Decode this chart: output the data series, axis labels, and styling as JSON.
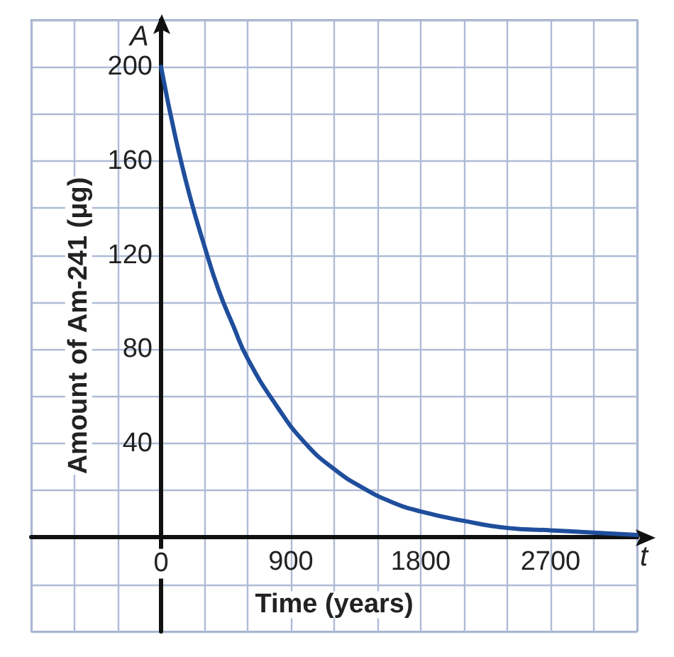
{
  "chart_data": {
    "type": "line",
    "xlabel": "Time (years)",
    "ylabel": "Amount of Am-241 (μg)",
    "annotations": [
      "A",
      "t"
    ],
    "x": [
      0,
      100,
      200,
      300,
      400,
      500,
      600,
      800,
      1000,
      1200,
      1400,
      1600,
      1800,
      2100,
      2400,
      2700,
      3000,
      3300
    ],
    "series": [
      {
        "color": "#1f4e9c",
        "values": [
          200,
          170,
          145,
          124,
          105,
          90,
          76,
          56,
          40,
          29,
          21,
          15,
          11,
          7,
          4,
          3,
          2,
          1
        ]
      }
    ],
    "xlim": [
      -900,
      3300
    ],
    "ylim": [
      -40,
      220
    ],
    "xticks": [
      {
        "value": -900,
        "label": null
      },
      {
        "value": -600,
        "label": null
      },
      {
        "value": -300,
        "label": null
      },
      0,
      {
        "value": 300,
        "label": null
      },
      {
        "value": 600,
        "label": null
      },
      900,
      {
        "value": 1200,
        "label": null
      },
      {
        "value": 1500,
        "label": null
      },
      1800,
      {
        "value": 2100,
        "label": null
      },
      {
        "value": 2400,
        "label": null
      },
      2700,
      {
        "value": 3000,
        "label": null
      },
      {
        "value": 3300,
        "label": null
      }
    ],
    "yticks": [
      {
        "value": -40,
        "label": null
      },
      {
        "value": -20,
        "label": null
      },
      {
        "value": 0,
        "label": null
      },
      {
        "value": 20,
        "label": null
      },
      40,
      {
        "value": 60,
        "label": null
      },
      80,
      {
        "value": 100,
        "label": null
      },
      120,
      {
        "value": 140,
        "label": null
      },
      160,
      {
        "value": 180,
        "label": null
      },
      200,
      {
        "value": 220,
        "label": null
      }
    ],
    "grid": true,
    "marker": "none",
    "line_style": "solid"
  }
}
